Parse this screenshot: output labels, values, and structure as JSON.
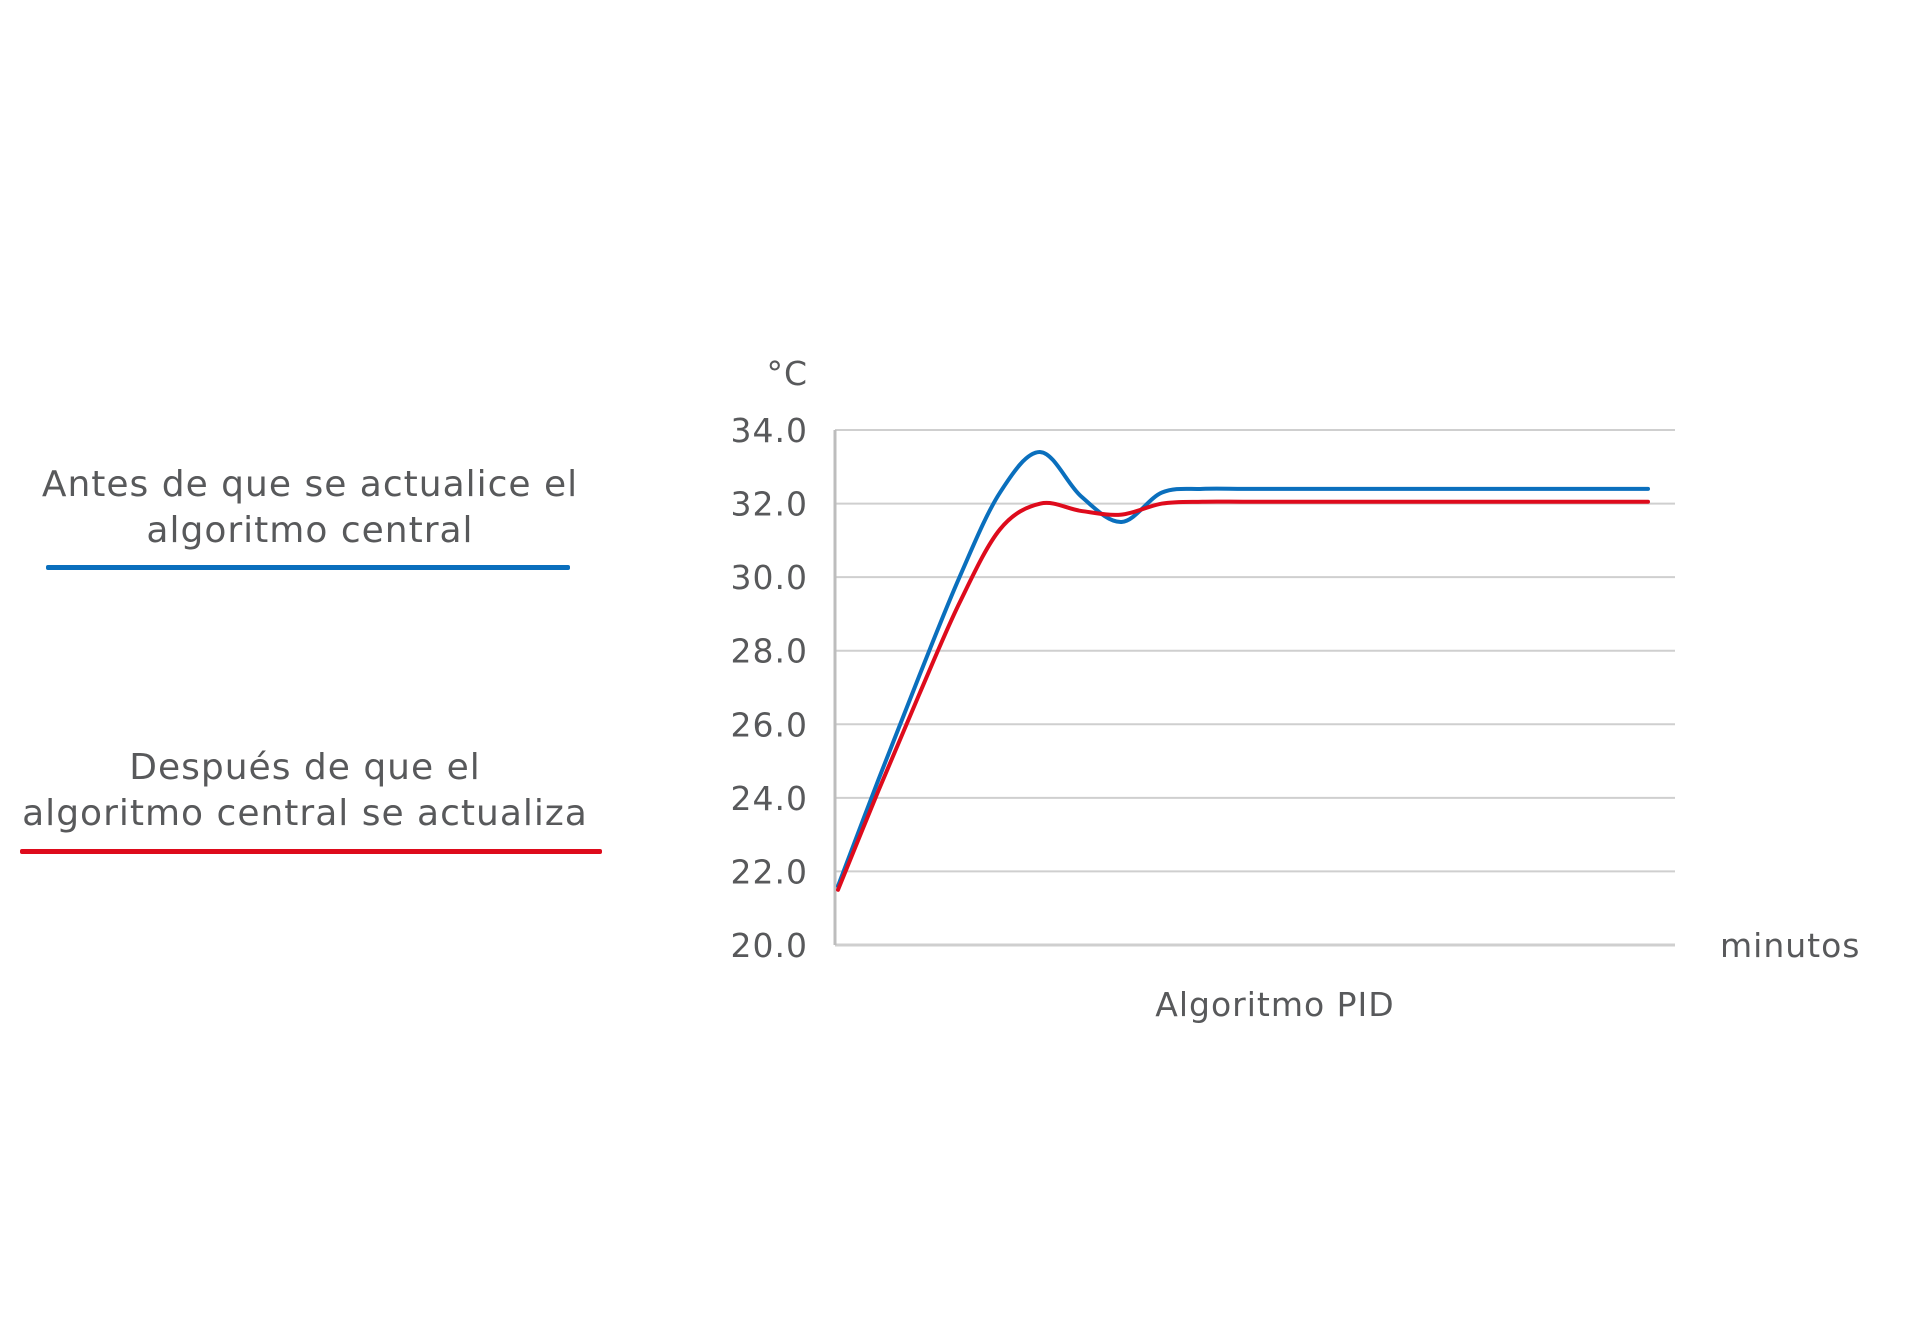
{
  "chart_data": {
    "type": "line",
    "title": "",
    "xlabel": "Algoritmo PID",
    "x_unit": "minutos",
    "ylabel": "°C",
    "ylim": [
      20,
      34
    ],
    "yticks": [
      "20.0",
      "22.0",
      "24.0",
      "26.0",
      "28.0",
      "30.0",
      "32.0",
      "34.0"
    ],
    "grid": true,
    "legend_position": "left",
    "x": [
      0,
      1,
      2,
      3,
      4,
      5,
      6,
      7,
      8,
      9,
      10,
      11,
      12,
      13,
      14,
      15,
      16,
      17,
      18,
      19,
      20
    ],
    "series": [
      {
        "name": "Antes de que se actualice el algoritmo central",
        "color": "#0a6fbd",
        "values": [
          21.6,
          24.5,
          27.3,
          30.0,
          32.3,
          33.4,
          32.2,
          31.5,
          32.3,
          32.4,
          32.4,
          32.4,
          32.4,
          32.4,
          32.4,
          32.4,
          32.4,
          32.4,
          32.4,
          32.4,
          32.4
        ]
      },
      {
        "name": "Después de que el algoritmo central se actualiza",
        "color": "#de0b1c",
        "values": [
          21.5,
          24.2,
          26.8,
          29.3,
          31.3,
          32.0,
          31.8,
          31.7,
          32.0,
          32.05,
          32.05,
          32.05,
          32.05,
          32.05,
          32.05,
          32.05,
          32.05,
          32.05,
          32.05,
          32.05,
          32.05
        ]
      }
    ]
  },
  "legend": {
    "before_label_line1": "Antes de que se actualice el",
    "before_label_line2": "algoritmo central",
    "after_label_line1": "Después de que el",
    "after_label_line2": "algoritmo central se actualiza"
  }
}
